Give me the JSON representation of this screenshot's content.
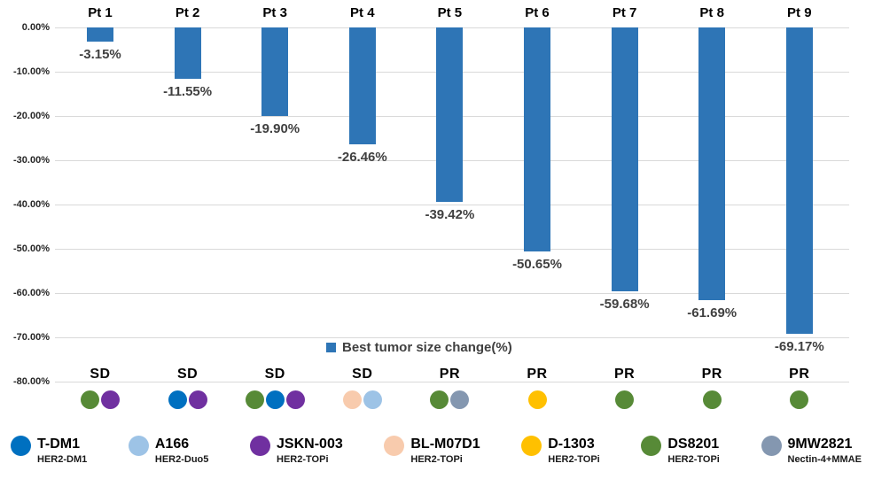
{
  "chart_data": {
    "type": "bar",
    "series_label": "Best tumor size change(%)",
    "bar_color": "#2E75B6",
    "grid_color": "#D9D9D9",
    "grid": true,
    "legend_position": "inside-bottom-center",
    "categories": [
      "Pt 1",
      "Pt 2",
      "Pt 3",
      "Pt 4",
      "Pt 5",
      "Pt 6",
      "Pt 7",
      "Pt 8",
      "Pt 9"
    ],
    "values": [
      -3.15,
      -11.55,
      -19.9,
      -26.46,
      -39.42,
      -50.65,
      -59.68,
      -61.69,
      -69.17
    ],
    "value_labels": [
      "-3.15%",
      "-11.55%",
      "-19.90%",
      "-26.46%",
      "-39.42%",
      "-50.65%",
      "-59.68%",
      "-61.69%",
      "-69.17%"
    ],
    "status_labels": [
      "SD",
      "SD",
      "SD",
      "SD",
      "PR",
      "PR",
      "PR",
      "PR",
      "PR"
    ],
    "ylim": [
      -80,
      0
    ],
    "ytick_labels": [
      "0.00%",
      "-10.00%",
      "-20.00%",
      "-30.00%",
      "-40.00%",
      "-50.00%",
      "-60.00%",
      "-70.00%",
      "-80.00%"
    ],
    "patient_drug_dots": [
      [
        "DS8201",
        "JSKN-003"
      ],
      [
        "T-DM1",
        "JSKN-003"
      ],
      [
        "DS8201",
        "T-DM1",
        "JSKN-003"
      ],
      [
        "BL-M07D1",
        "A166"
      ],
      [
        "DS8201",
        "9MW2821"
      ],
      [
        "D-1303"
      ],
      [
        "DS8201"
      ],
      [
        "DS8201"
      ],
      [
        "DS8201"
      ]
    ]
  },
  "drug_legend": [
    {
      "name": "T-DM1",
      "subtitle": "HER2-DM1",
      "color": "#0070C0"
    },
    {
      "name": "A166",
      "subtitle": "HER2-Duo5",
      "color": "#9DC3E6"
    },
    {
      "name": "JSKN-003",
      "subtitle": "HER2-TOPi",
      "color": "#7030A0"
    },
    {
      "name": "BL-M07D1",
      "subtitle": "HER2-TOPi",
      "color": "#F8CBAD"
    },
    {
      "name": "D-1303",
      "subtitle": "HER2-TOPi",
      "color": "#FFC000"
    },
    {
      "name": "DS8201",
      "subtitle": "HER2-TOPi",
      "color": "#578A37"
    },
    {
      "name": "9MW2821",
      "subtitle": "Nectin-4+MMAE",
      "color": "#8497B0"
    }
  ]
}
